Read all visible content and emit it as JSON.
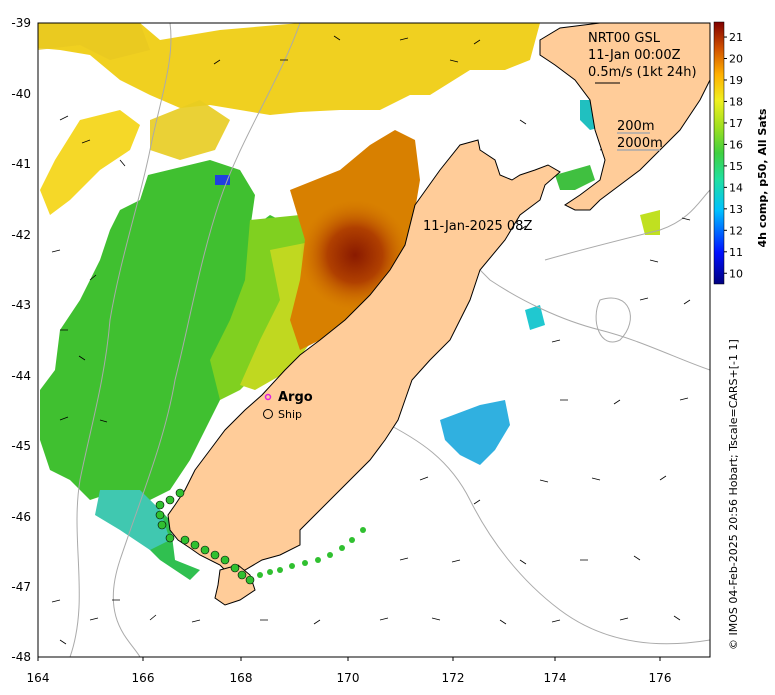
{
  "map": {
    "lon_ticks": [
      "164",
      "166",
      "168",
      "170",
      "172",
      "174",
      "176"
    ],
    "lat_ticks": [
      "-39",
      "-40",
      "-41",
      "-42",
      "-43",
      "-44",
      "-45",
      "-46",
      "-47",
      "-48"
    ],
    "colors": {
      "land": "#ffcc99",
      "coast": "#000000",
      "isobath": "#aaaaaa",
      "argo": "#e020e0"
    }
  },
  "annotations": {
    "product_line1": "NRT00 GSL",
    "product_line2": "11-Jan 00:00Z",
    "product_line3": "0.5m/s (1kt 24h)",
    "isobath_200": "200m",
    "isobath_2000": "2000m",
    "pass_time": "11-Jan-2025 08Z"
  },
  "legend": {
    "argo": "Argo",
    "ship": "Ship"
  },
  "colorbar": {
    "ticks": [
      "21",
      "20",
      "19",
      "18",
      "17",
      "16",
      "15",
      "14",
      "13",
      "12",
      "11",
      "10"
    ],
    "label": "4h comp, p50, All Sats",
    "min": 9.5,
    "max": 21.7
  },
  "credit": "© IMOS 04-Feb-2025 20:56 Hobart; Tscale=CARS+[-1 1]"
}
